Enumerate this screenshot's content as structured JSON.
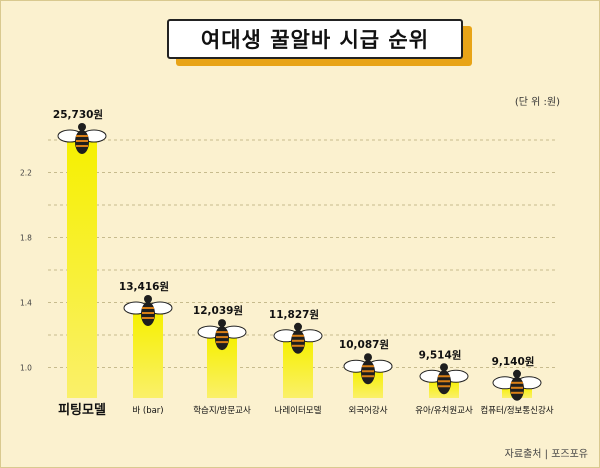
{
  "title": "여대생 꿀알바 시급 순위",
  "unit": "(단 위 :원)",
  "source": "자료출처 | 포즈포유",
  "colors": {
    "background": "#fbf1cf",
    "title_accent": "#e8a417",
    "bar": "#f4ee14",
    "bee_body": "#1e1e1e",
    "bee_stripe": "#d87f17",
    "bee_wing": "#ffffff"
  },
  "icons": {
    "bar_cap": "bee-icon"
  },
  "chart_data": {
    "type": "bar",
    "title": "여대생 꿀알바 시급 순위",
    "categories": [
      "피팅모델",
      "바 (bar)",
      "학습지/방문교사",
      "나레이터모델",
      "외국어강사",
      "유아/유치원교사",
      "컴퓨터/정보통신강사"
    ],
    "values": [
      25730,
      13416,
      12039,
      11827,
      10087,
      9514,
      9140
    ],
    "value_labels": [
      "25,730원",
      "13,416원",
      "12,039원",
      "11,827원",
      "10,087원",
      "9,514원",
      "9,140원"
    ],
    "y_ticks": [
      "1.0",
      "1.4",
      "1.8",
      "2.2"
    ],
    "grid": true,
    "legend": "none"
  }
}
